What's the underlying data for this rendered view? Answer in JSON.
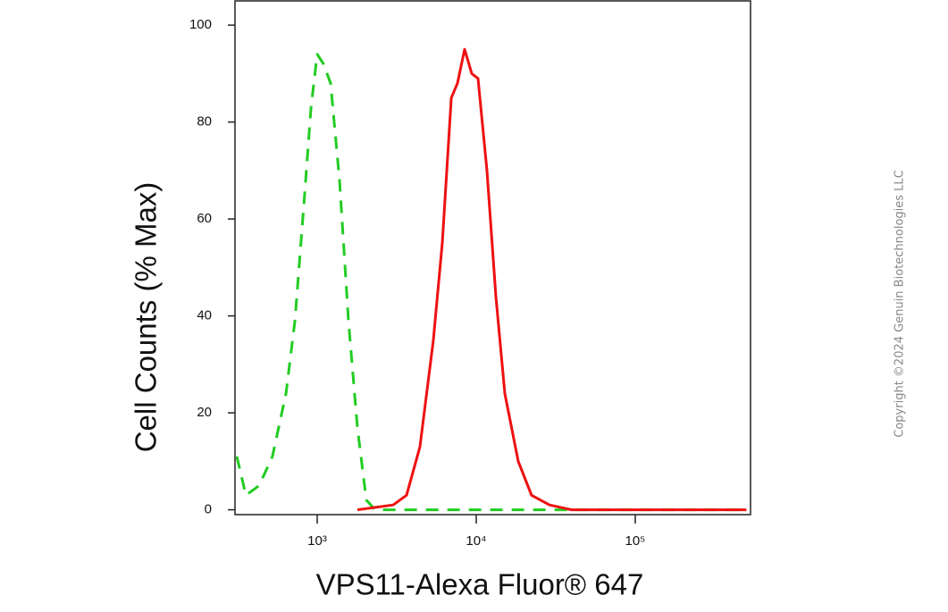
{
  "chart_data": {
    "type": "line",
    "x_label": "VPS11-Alexa Fluor® 647",
    "y_label": "Cell Counts (% Max)",
    "watermark": "Copyright ©2024 Genuin Biotechnologies LLC",
    "x_log": true,
    "xlim": [
      304,
      531000
    ],
    "ylim": [
      -1,
      105
    ],
    "xticks": [
      {
        "value": 1000,
        "label": "10³"
      },
      {
        "value": 10000,
        "label": "10⁴"
      },
      {
        "value": 100000,
        "label": "10⁵"
      }
    ],
    "yticks": [
      0,
      20,
      40,
      60,
      80,
      100
    ],
    "series": [
      {
        "color": "#22cc22",
        "dashed": true,
        "x": [
          312,
          356,
          431,
          523,
          636,
          724,
          824,
          914,
          1000,
          1094,
          1214,
          1381,
          1573,
          1790,
          2037,
          2318,
          500000
        ],
        "values": [
          11,
          3,
          5,
          11,
          24,
          39,
          63,
          83,
          94,
          92,
          88,
          68,
          39,
          17,
          2,
          0,
          0
        ]
      },
      {
        "color": "#ee1111",
        "dashed": false,
        "x": [
          1790,
          3003,
          3647,
          4426,
          5375,
          6118,
          6966,
          7621,
          8453,
          9376,
          10260,
          11680,
          13300,
          15130,
          18370,
          22290,
          28910,
          39900,
          500000
        ],
        "values": [
          0,
          1,
          3,
          13,
          35,
          55,
          85,
          88,
          95,
          90,
          89,
          70,
          44,
          24,
          10,
          3,
          1,
          0,
          0
        ]
      }
    ]
  }
}
